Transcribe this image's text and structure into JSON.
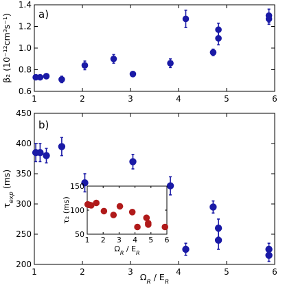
{
  "chart_data": [
    {
      "type": "scatter",
      "panel_label": "a)",
      "xlabel": "",
      "ylabel": "β₂ (10⁻¹²cm³s⁻¹)",
      "xlim": [
        1,
        6
      ],
      "ylim": [
        0.6,
        1.4
      ],
      "xticks": [
        1,
        2,
        3,
        4,
        5,
        6
      ],
      "yticks": [
        0.6,
        0.8,
        1.0,
        1.2,
        1.4
      ],
      "grid": false,
      "marker_color": "#1a1aa6",
      "points": [
        {
          "x": 1.03,
          "y": 0.73,
          "err": 0.02
        },
        {
          "x": 1.12,
          "y": 0.73,
          "err": 0.02
        },
        {
          "x": 1.25,
          "y": 0.74,
          "err": 0.02
        },
        {
          "x": 1.57,
          "y": 0.71,
          "err": 0.03
        },
        {
          "x": 2.05,
          "y": 0.84,
          "err": 0.04
        },
        {
          "x": 2.65,
          "y": 0.9,
          "err": 0.04
        },
        {
          "x": 3.05,
          "y": 0.76,
          "err": 0.02
        },
        {
          "x": 3.83,
          "y": 0.86,
          "err": 0.04
        },
        {
          "x": 4.15,
          "y": 1.27,
          "err": 0.08
        },
        {
          "x": 4.72,
          "y": 0.96,
          "err": 0.03
        },
        {
          "x": 4.83,
          "y": 1.09,
          "err": 0.06
        },
        {
          "x": 4.83,
          "y": 1.17,
          "err": 0.06
        },
        {
          "x": 5.88,
          "y": 1.27,
          "err": 0.05
        },
        {
          "x": 5.88,
          "y": 1.3,
          "err": 0.06
        }
      ]
    },
    {
      "type": "scatter",
      "panel_label": "b)",
      "xlabel": "Ω_R / E_R",
      "ylabel": "τ_exp (ms)",
      "xlim": [
        1,
        6
      ],
      "ylim": [
        200,
        450
      ],
      "xticks": [
        1,
        2,
        3,
        4,
        5,
        6
      ],
      "yticks": [
        200,
        250,
        300,
        350,
        400,
        450
      ],
      "grid": false,
      "marker_color": "#1a1aa6",
      "points": [
        {
          "x": 1.03,
          "y": 385,
          "err": 15
        },
        {
          "x": 1.12,
          "y": 385,
          "err": 15
        },
        {
          "x": 1.25,
          "y": 380,
          "err": 12
        },
        {
          "x": 1.57,
          "y": 395,
          "err": 15
        },
        {
          "x": 2.05,
          "y": 335,
          "err": 15
        },
        {
          "x": 2.65,
          "y": 315,
          "err": 12
        },
        {
          "x": 3.05,
          "y": 370,
          "err": 12
        },
        {
          "x": 3.83,
          "y": 330,
          "err": 15
        },
        {
          "x": 4.15,
          "y": 225,
          "err": 10
        },
        {
          "x": 4.72,
          "y": 295,
          "err": 10
        },
        {
          "x": 4.83,
          "y": 260,
          "err": 15
        },
        {
          "x": 4.83,
          "y": 240,
          "err": 15
        },
        {
          "x": 5.88,
          "y": 225,
          "err": 10
        },
        {
          "x": 5.88,
          "y": 215,
          "err": 10
        }
      ],
      "inset": {
        "type": "scatter",
        "xlabel": "Ω_R / E_R",
        "ylabel": "τ₂ (ms)",
        "xlim": [
          1,
          6
        ],
        "ylim": [
          50,
          150
        ],
        "xticks": [
          1,
          2,
          3,
          4,
          5,
          6
        ],
        "yticks": [
          50,
          100,
          150
        ],
        "marker_color": "#b01a1a",
        "points": [
          {
            "x": 1.03,
            "y": 112
          },
          {
            "x": 1.12,
            "y": 111
          },
          {
            "x": 1.25,
            "y": 110
          },
          {
            "x": 1.57,
            "y": 115
          },
          {
            "x": 2.05,
            "y": 98
          },
          {
            "x": 2.65,
            "y": 90
          },
          {
            "x": 3.05,
            "y": 108
          },
          {
            "x": 3.83,
            "y": 96
          },
          {
            "x": 4.15,
            "y": 65
          },
          {
            "x": 4.72,
            "y": 84
          },
          {
            "x": 4.83,
            "y": 73
          },
          {
            "x": 4.83,
            "y": 70
          },
          {
            "x": 5.88,
            "y": 65
          }
        ]
      }
    }
  ]
}
